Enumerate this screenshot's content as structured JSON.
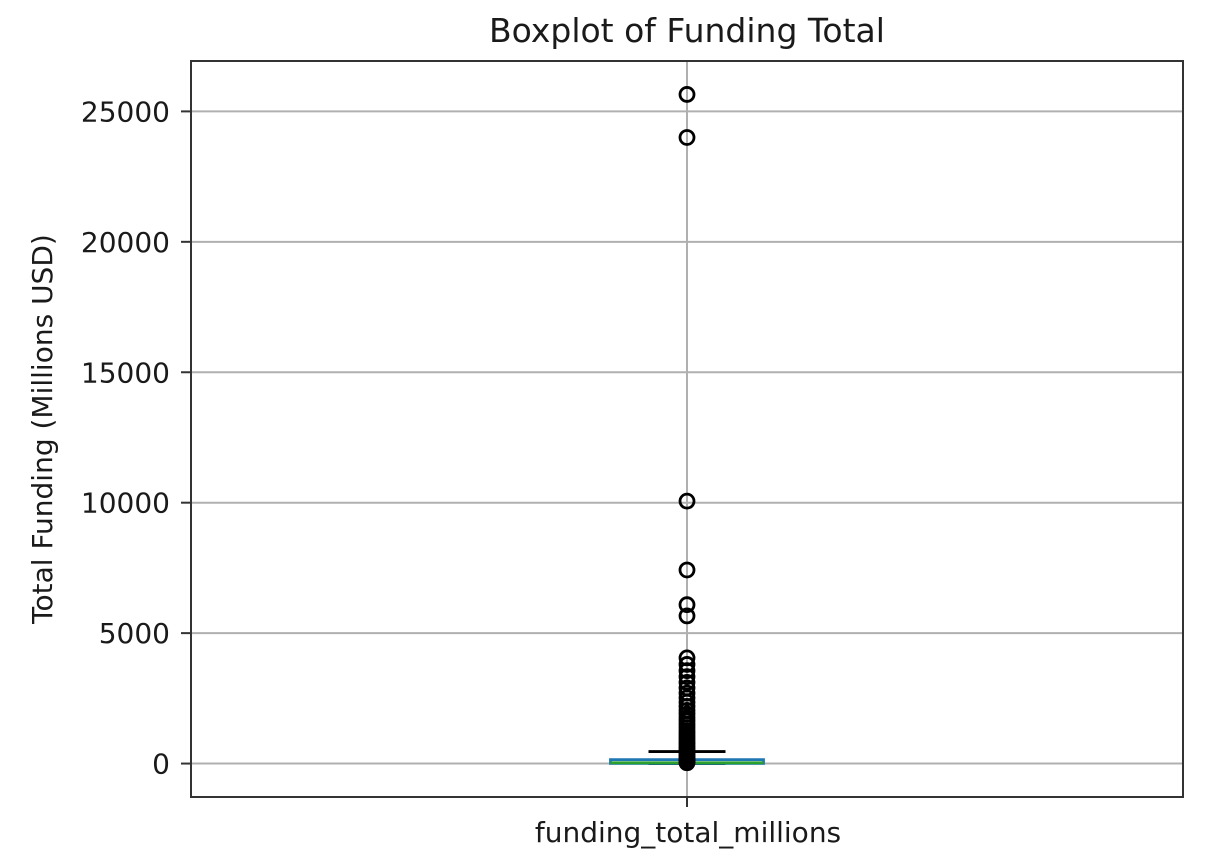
{
  "chart_data": {
    "type": "boxplot",
    "title": "Boxplot of Funding Total",
    "ylabel": "Total Funding (Millions USD)",
    "xlabel": "",
    "categories": [
      "funding_total_millions"
    ],
    "ytick_labels": [
      "0",
      "5000",
      "10000",
      "15000",
      "20000",
      "25000"
    ],
    "ytick_values": [
      0,
      5000,
      10000,
      15000,
      20000,
      25000
    ],
    "ylim": [
      -1282,
      26932
    ],
    "grid": true,
    "legend_position": "none",
    "series": [
      {
        "name": "funding_total_millions",
        "whisker_low": 0,
        "q1": 5,
        "median": 28,
        "q3": 150,
        "whisker_high": 460,
        "outliers": [
          25650,
          24000,
          10060,
          7420,
          6090,
          5660,
          4050,
          3800,
          3560,
          3330,
          3110,
          2900,
          2700,
          2520,
          2350,
          2190,
          2040,
          1900,
          1760,
          1630,
          1500,
          1380,
          1260,
          1150,
          1040,
          940,
          840,
          750,
          660,
          580,
          500,
          430,
          360,
          300,
          240,
          190,
          140,
          100,
          60,
          30
        ]
      }
    ],
    "colors": {
      "box": "#1f77b4",
      "whisker": "#1f77b4",
      "median": "#2ca02c",
      "cap": "#000000",
      "flier": "#000000",
      "grid": "#b0b0b0",
      "spine": "#333333",
      "text": "#1a1a1a",
      "background": "#ffffff"
    }
  }
}
